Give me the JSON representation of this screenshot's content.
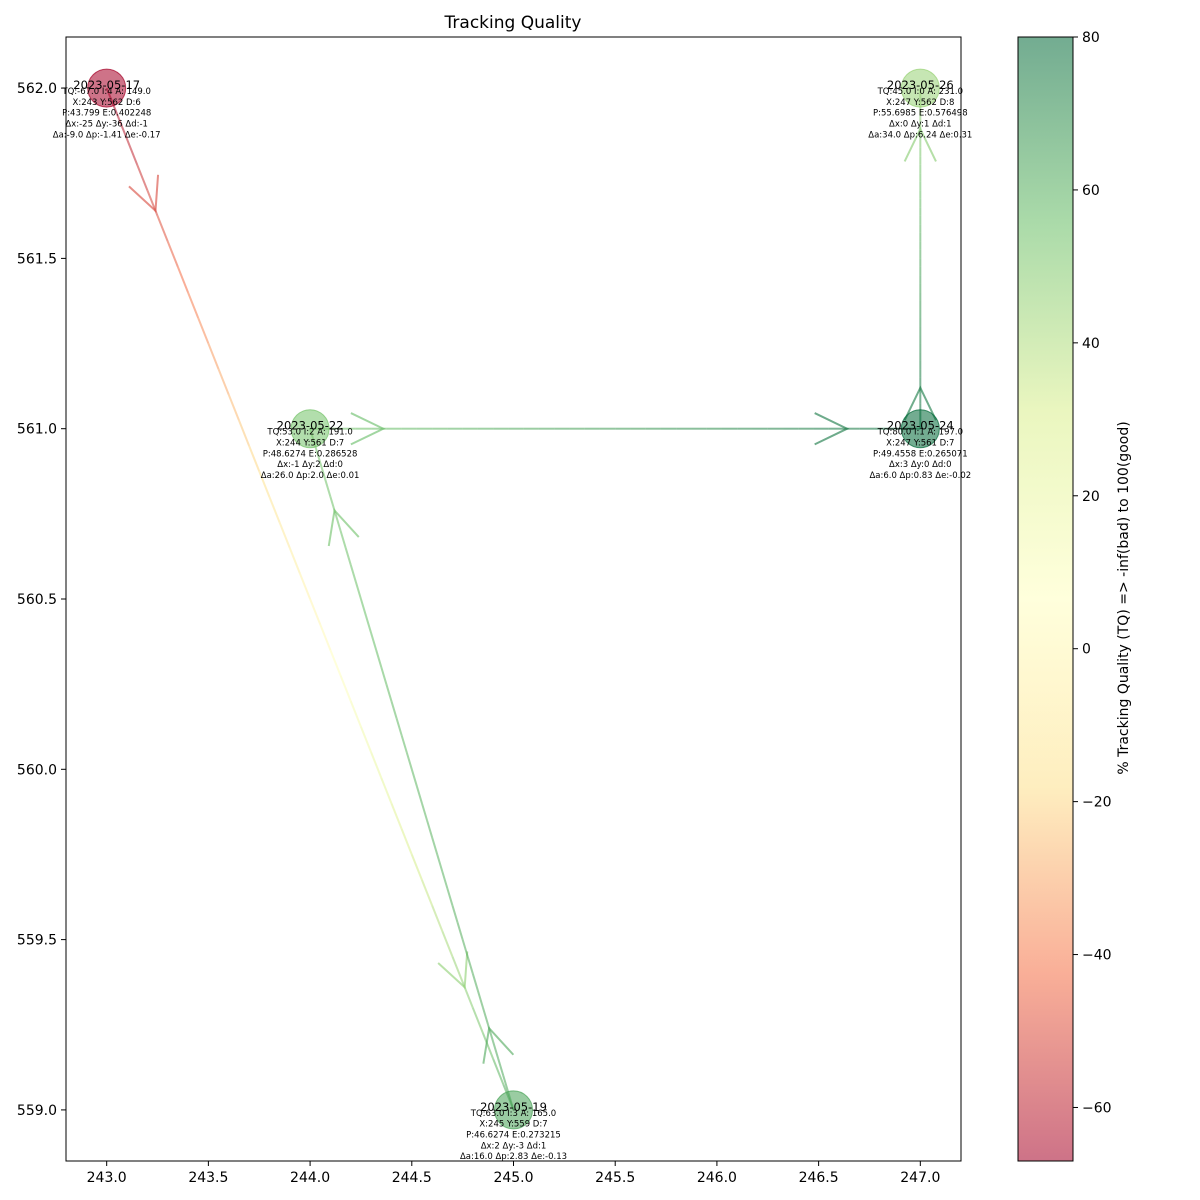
{
  "chart_data": {
    "type": "scatter",
    "title": "Tracking Quality",
    "xlabel": "",
    "ylabel": "",
    "xlim": [
      242.8,
      247.2
    ],
    "ylim": [
      558.85,
      562.15
    ],
    "x_ticks": [
      243.0,
      243.5,
      244.0,
      244.5,
      245.0,
      245.5,
      246.0,
      246.5,
      247.0
    ],
    "y_ticks": [
      559.0,
      559.5,
      560.0,
      560.5,
      561.0,
      561.5,
      562.0
    ],
    "grid": false,
    "colorbar": {
      "label": "% Tracking Quality (TQ) => -inf(bad) to 100(good)",
      "range": [
        -67,
        80
      ],
      "ticks": [
        -60,
        -40,
        -20,
        0,
        20,
        40,
        60,
        80
      ],
      "colormap": "red-yellow-green",
      "colors": [
        "#a50026",
        "#f46d43",
        "#fee08b",
        "#ffffbf",
        "#d9ef8b",
        "#66bd63",
        "#006837"
      ]
    },
    "points": [
      {
        "date": "2023-05-17",
        "x": 243,
        "y": 562,
        "tq": -67,
        "lines": [
          "TQ:-67.0 I:4 A: 149.0",
          "X:243 Y:562 D:6",
          "P:43.799 E:0.402248",
          "Δx:-25 Δy:-36 Δd:-1",
          "Δa:-9.0 Δp:-1.41 Δe:-0.17"
        ]
      },
      {
        "date": "2023-05-19",
        "x": 245,
        "y": 559,
        "tq": 63,
        "lines": [
          "TQ:63.0 I:3 A: 165.0",
          "X:245 Y:559 D:7",
          "P:46.6274 E:0.273215",
          "Δx:2 Δy:-3 Δd:1",
          "Δa:16.0 Δp:2.83 Δe:-0.13"
        ]
      },
      {
        "date": "2023-05-22",
        "x": 244,
        "y": 561,
        "tq": 53,
        "lines": [
          "TQ:53.0 I:2 A: 191.0",
          "X:244 Y:561 D:7",
          "P:48.6274 E:0.286528",
          "Δx:-1 Δy:2 Δd:0",
          "Δa:26.0 Δp:2.0 Δe:0.01"
        ]
      },
      {
        "date": "2023-05-24",
        "x": 247,
        "y": 561,
        "tq": 80,
        "lines": [
          "TQ:80.0 I:1 A: 197.0",
          "X:247 Y:561 D:7",
          "P:49.4558 E:0.265071",
          "Δx:3 Δy:0 Δd:0",
          "Δa:6.0 Δp:0.83 Δe:-0.02"
        ]
      },
      {
        "date": "2023-05-26",
        "x": 247,
        "y": 562,
        "tq": 45,
        "lines": [
          "TQ:45.0 I:0 A: 231.0",
          "X:247 Y:562 D:8",
          "P:55.6985 E:0.576498",
          "Δx:0 Δy:1 Δd:1",
          "Δa:34.0 Δp:6.24 Δe:0.31"
        ]
      }
    ]
  }
}
